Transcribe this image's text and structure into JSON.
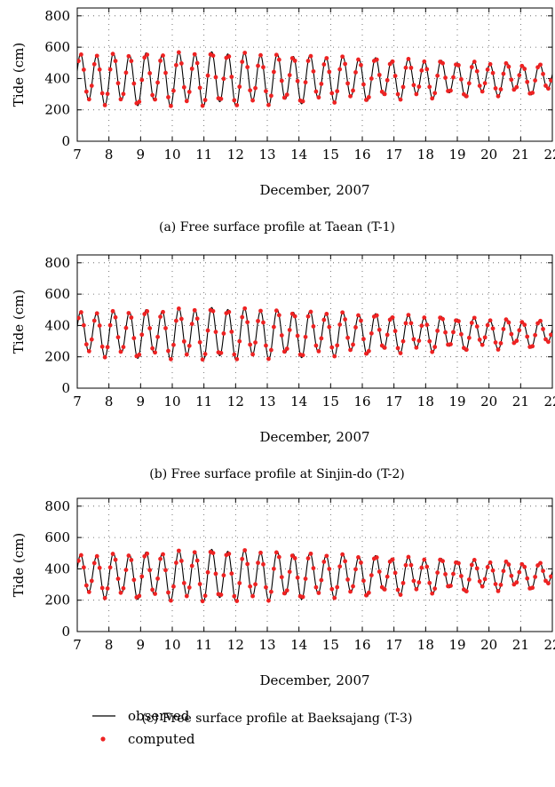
{
  "chart_data": [
    {
      "type": "line",
      "caption": "(a)  Free surface profile at Taean (T-1)",
      "xlabel": "December, 2007",
      "ylabel": "Tide (cm)",
      "xlim": [
        7,
        22
      ],
      "ylim": [
        0,
        850
      ],
      "xticks": [
        7,
        8,
        9,
        10,
        11,
        12,
        13,
        14,
        15,
        16,
        17,
        18,
        19,
        20,
        21,
        22
      ],
      "yticks": [
        0,
        200,
        400,
        600,
        800
      ],
      "grid": true,
      "tide": {
        "mean": 400,
        "amp_start": 300,
        "amp_peak": 330,
        "peak_day": 11.5,
        "amp_end": 165,
        "period_days": 0.5175,
        "phase_day": 7.1
      },
      "series": [
        {
          "name": "observed",
          "style": "line",
          "color": "#000000"
        },
        {
          "name": "computed",
          "style": "dots",
          "color": "#ee2222"
        }
      ]
    },
    {
      "type": "line",
      "caption": "(b)  Free surface profile at Sinjin-do (T-2)",
      "xlabel": "December, 2007",
      "ylabel": "Tide (cm)",
      "xlim": [
        7,
        22
      ],
      "ylim": [
        0,
        850
      ],
      "xticks": [
        7,
        8,
        9,
        10,
        11,
        12,
        13,
        14,
        15,
        16,
        17,
        18,
        19,
        20,
        21,
        22
      ],
      "yticks": [
        0,
        200,
        400,
        600,
        800
      ],
      "grid": true,
      "tide": {
        "mean": 350,
        "amp_start": 260,
        "amp_peak": 320,
        "peak_day": 11.5,
        "amp_end": 145,
        "period_days": 0.5175,
        "phase_day": 7.1
      },
      "series": [
        {
          "name": "observed",
          "style": "line",
          "color": "#000000"
        },
        {
          "name": "computed",
          "style": "dots",
          "color": "#ee2222"
        }
      ]
    },
    {
      "type": "line",
      "caption": "(c)  Free surface profile at Baeksajang (T-3)",
      "xlabel": "December, 2007",
      "ylabel": "Tide (cm)",
      "xlim": [
        7,
        22
      ],
      "ylim": [
        0,
        850
      ],
      "xticks": [
        7,
        8,
        9,
        10,
        11,
        12,
        13,
        14,
        15,
        16,
        17,
        18,
        19,
        20,
        21,
        22
      ],
      "yticks": [
        0,
        200,
        400,
        600,
        800
      ],
      "grid": true,
      "tide": {
        "mean": 360,
        "amp_start": 245,
        "amp_peak": 320,
        "peak_day": 11.5,
        "amp_end": 140,
        "period_days": 0.5175,
        "phase_day": 7.1
      },
      "series": [
        {
          "name": "observed",
          "style": "line",
          "color": "#000000"
        },
        {
          "name": "computed",
          "style": "dots",
          "color": "#ee2222"
        }
      ]
    }
  ],
  "legend": {
    "observed_label": "observed",
    "computed_label": "computed"
  }
}
